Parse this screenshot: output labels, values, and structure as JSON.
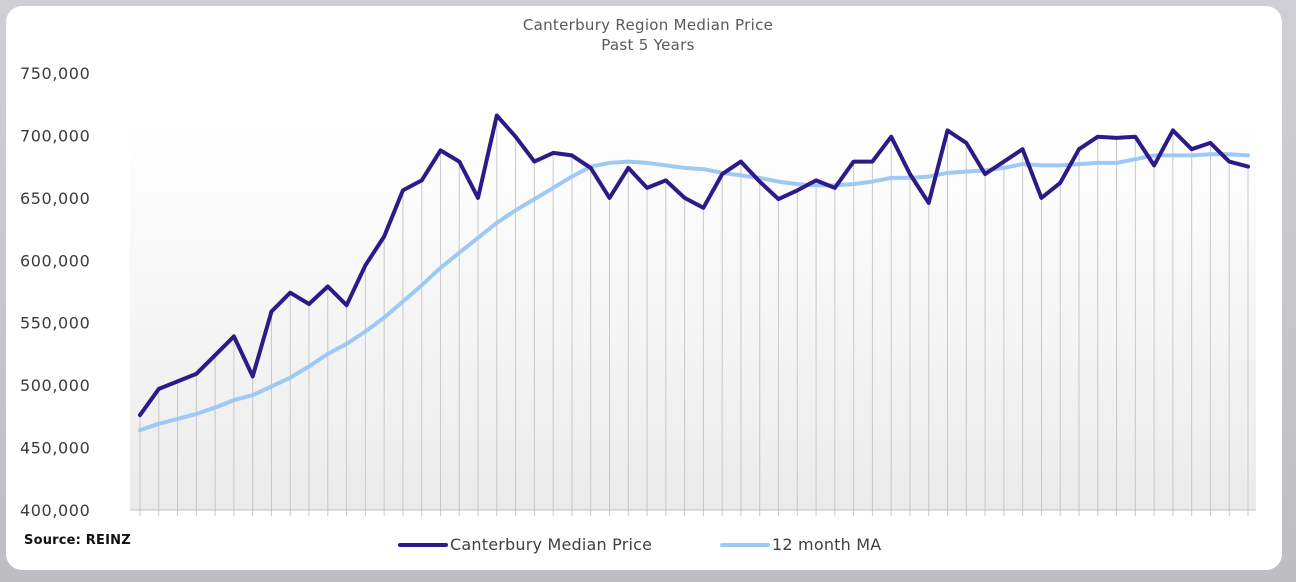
{
  "source_label": "Source: REINZ",
  "colors": {
    "median": "#2e1a87",
    "ma": "#9ec9f5",
    "grid": "#c8c8c8"
  },
  "chart_data": {
    "type": "line",
    "title": "Canterbury Region Median Price",
    "subtitle": "Past 5 Years",
    "ylim": [
      400000,
      750000
    ],
    "yticks": [
      400000,
      450000,
      500000,
      550000,
      600000,
      650000,
      700000,
      750000
    ],
    "ytick_labels": [
      "400,000",
      "450,000",
      "500,000",
      "550,000",
      "600,000",
      "650,000",
      "700,000",
      "750,000"
    ],
    "xtick_labels_visible": false,
    "legend_position": "bottom",
    "series": [
      {
        "name": "Canterbury Median Price",
        "color": "#2e1a87",
        "values": [
          476000,
          497000,
          503000,
          509000,
          524000,
          539000,
          507000,
          559000,
          574000,
          565000,
          579000,
          564000,
          596000,
          619000,
          656000,
          664000,
          688000,
          679000,
          650000,
          716000,
          699000,
          679000,
          686000,
          684000,
          674000,
          650000,
          674000,
          658000,
          664000,
          650000,
          642000,
          669000,
          679000,
          663000,
          649000,
          656000,
          664000,
          658000,
          679000,
          679000,
          699000,
          669000,
          646000,
          704000,
          694000,
          669000,
          679000,
          689000,
          650000,
          662000,
          689000,
          699000,
          698000,
          699000,
          676000,
          704000,
          689000,
          694000,
          679000,
          675000
        ]
      },
      {
        "name": "12 month MA",
        "color": "#9ec9f5",
        "values": [
          464000,
          469000,
          473000,
          477000,
          482000,
          488000,
          492000,
          499000,
          506000,
          515000,
          525000,
          533000,
          543000,
          554000,
          567000,
          580000,
          594000,
          606000,
          618000,
          630000,
          640000,
          649000,
          658000,
          667000,
          675000,
          678000,
          679000,
          678000,
          676000,
          674000,
          673000,
          670000,
          668000,
          666000,
          663000,
          661000,
          660000,
          660000,
          661000,
          663000,
          666000,
          666000,
          667000,
          670000,
          671000,
          672000,
          674000,
          677000,
          676000,
          676000,
          677000,
          678000,
          678000,
          681000,
          684000,
          684000,
          684000,
          685000,
          685000,
          684000
        ]
      }
    ]
  }
}
